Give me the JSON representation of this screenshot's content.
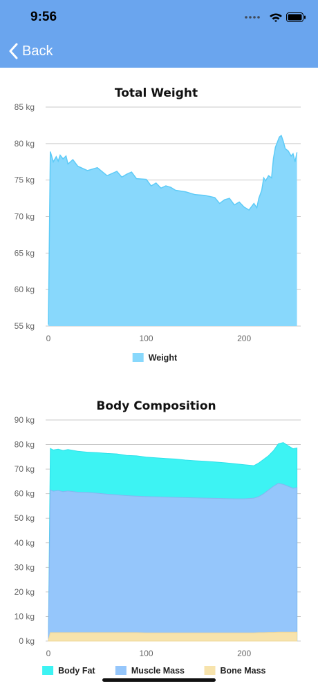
{
  "status_bar": {
    "time": "9:56"
  },
  "nav": {
    "back_label": "Back"
  },
  "colors": {
    "header": "#6aa5ee",
    "weight": "#88d8fc",
    "weight_line": "#5ecbf7",
    "body_fat": "#3df3f3",
    "muscle_mass": "#95c6fb",
    "bone_mass": "#f7e3ac"
  },
  "chart_data": [
    {
      "type": "area",
      "title": "Total Weight",
      "x_ticks": [
        "0",
        "100",
        "200"
      ],
      "y_ticks": [
        "55 kg",
        "60 kg",
        "65 kg",
        "70 kg",
        "75 kg",
        "80 kg",
        "85 kg"
      ],
      "xlim": [
        0,
        255
      ],
      "ylim": [
        55,
        85
      ],
      "grid": "horizontal",
      "legend_position": "bottom",
      "series": [
        {
          "name": "Weight",
          "x": [
            0,
            2,
            5,
            8,
            10,
            12,
            15,
            18,
            20,
            25,
            30,
            40,
            50,
            60,
            70,
            75,
            80,
            85,
            90,
            100,
            105,
            110,
            115,
            120,
            125,
            130,
            140,
            150,
            160,
            170,
            175,
            180,
            185,
            190,
            195,
            200,
            205,
            210,
            213,
            215,
            218,
            220,
            222,
            225,
            228,
            230,
            232,
            234,
            236,
            238,
            240,
            242,
            245,
            248,
            250,
            252,
            254
          ],
          "values": [
            55.2,
            78.9,
            77.5,
            78.2,
            77.6,
            78.4,
            77.9,
            78.3,
            77.2,
            77.8,
            76.9,
            76.3,
            76.7,
            75.6,
            76.2,
            75.4,
            75.8,
            76.1,
            75.2,
            75.1,
            74.2,
            74.6,
            73.9,
            74.2,
            74.0,
            73.6,
            73.4,
            73.0,
            72.9,
            72.6,
            71.8,
            72.3,
            72.5,
            71.6,
            72.0,
            71.3,
            70.9,
            71.8,
            71.2,
            72.5,
            73.6,
            75.3,
            74.9,
            75.6,
            75.3,
            78.0,
            79.5,
            80.2,
            80.9,
            81.1,
            80.3,
            79.3,
            79.0,
            78.3,
            78.6,
            77.5,
            78.8
          ]
        }
      ],
      "legend": [
        "Weight"
      ]
    },
    {
      "type": "area",
      "stacked": false,
      "title": "Body Composition",
      "x_ticks": [
        "0",
        "100",
        "200"
      ],
      "y_ticks": [
        "0 kg",
        "10 kg",
        "20 kg",
        "30 kg",
        "40 kg",
        "50 kg",
        "60 kg",
        "70 kg",
        "80 kg",
        "90 kg"
      ],
      "xlim": [
        0,
        255
      ],
      "ylim": [
        0,
        90
      ],
      "grid": "horizontal",
      "legend_position": "bottom",
      "x": [
        0,
        2,
        5,
        10,
        15,
        20,
        30,
        40,
        50,
        60,
        70,
        80,
        90,
        100,
        110,
        120,
        130,
        140,
        150,
        160,
        170,
        180,
        190,
        200,
        210,
        215,
        220,
        225,
        230,
        235,
        240,
        245,
        250,
        254
      ],
      "series": [
        {
          "name": "Body Fat",
          "values": [
            2,
            78.4,
            77.8,
            78.1,
            77.6,
            78.0,
            77.3,
            76.9,
            76.7,
            76.4,
            76.2,
            75.6,
            75.4,
            74.9,
            74.6,
            74.3,
            74.1,
            73.7,
            73.4,
            73.2,
            72.9,
            72.6,
            72.2,
            71.8,
            71.4,
            72.5,
            74.0,
            75.5,
            77.5,
            80.3,
            80.8,
            79.5,
            78.3,
            78.6
          ]
        },
        {
          "name": "Muscle Mass",
          "values": [
            1.8,
            61.5,
            61.0,
            61.3,
            60.8,
            61.1,
            60.6,
            60.5,
            60.2,
            59.8,
            59.5,
            59.2,
            59.0,
            58.8,
            58.7,
            58.6,
            58.5,
            58.4,
            58.3,
            58.2,
            58.1,
            58.0,
            57.9,
            57.9,
            58.2,
            58.8,
            60.0,
            61.5,
            63.0,
            64.2,
            63.8,
            63.0,
            62.2,
            62.5
          ]
        },
        {
          "name": "Bone Mass",
          "values": [
            0.5,
            3.4,
            3.4,
            3.4,
            3.4,
            3.4,
            3.4,
            3.4,
            3.4,
            3.4,
            3.4,
            3.4,
            3.4,
            3.3,
            3.3,
            3.3,
            3.3,
            3.3,
            3.3,
            3.3,
            3.3,
            3.3,
            3.3,
            3.3,
            3.3,
            3.4,
            3.4,
            3.5,
            3.5,
            3.6,
            3.6,
            3.6,
            3.6,
            3.6
          ]
        }
      ],
      "legend": [
        "Body Fat",
        "Muscle Mass",
        "Bone Mass"
      ]
    }
  ]
}
